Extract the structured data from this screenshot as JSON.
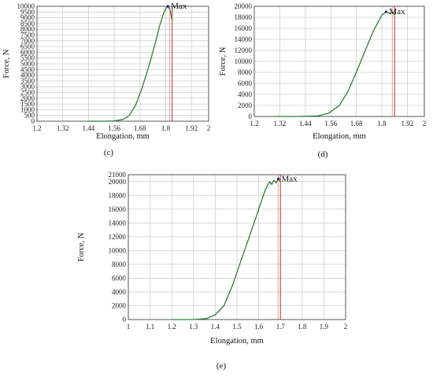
{
  "chart_data": [
    {
      "id": "c",
      "type": "line",
      "caption": "(c)",
      "xlabel": "Elongation, mm",
      "ylabel": "Force, N",
      "xlim": [
        1.2,
        2
      ],
      "ylim": [
        0,
        10000
      ],
      "xticks": [
        1.2,
        1.32,
        1.44,
        1.56,
        1.68,
        1.8,
        1.92,
        2
      ],
      "xtick_labels": [
        "1.2",
        "1.32",
        "1.44",
        "1.56",
        "1.68",
        "1.8",
        "1.92",
        "2"
      ],
      "yticks": [
        0,
        500,
        1000,
        1500,
        2000,
        2500,
        3000,
        3500,
        4000,
        4500,
        5000,
        5500,
        6000,
        6500,
        7000,
        7500,
        8000,
        8500,
        9000,
        9500,
        10000
      ],
      "ytick_labels": [
        "0",
        "500",
        "1000",
        "1500",
        "2000",
        "2500",
        "3000",
        "3500",
        "4000",
        "4500",
        "5000",
        "5500",
        "6000",
        "6500",
        "7000",
        "7500",
        "8000",
        "8500",
        "9000",
        "9500",
        "10000"
      ],
      "grid": true,
      "annotation": {
        "text": "Max",
        "x": 1.81,
        "y": 10000
      },
      "series": [
        {
          "color": "#2e7d32",
          "x": [
            1.44,
            1.5,
            1.56,
            1.6,
            1.63,
            1.66,
            1.69,
            1.72,
            1.75,
            1.77,
            1.79,
            1.8,
            1.81,
            1.82,
            1.83
          ],
          "y": [
            0,
            0,
            30,
            150,
            500,
            1400,
            2900,
            4700,
            6700,
            8200,
            9400,
            9800,
            10000,
            9700,
            8800
          ]
        }
      ],
      "marker_line": {
        "color": "#c62828",
        "x": 1.83
      }
    },
    {
      "id": "d",
      "type": "line",
      "caption": "(d)",
      "xlabel": "Elongation, mm",
      "ylabel": "Force, N",
      "xlim": [
        1.2,
        2
      ],
      "ylim": [
        0,
        20000
      ],
      "xticks": [
        1.2,
        1.32,
        1.44,
        1.56,
        1.68,
        1.8,
        1.92,
        2
      ],
      "xtick_labels": [
        "1.2",
        "1.32",
        "1.44",
        "1.56",
        "1.68",
        "1.8",
        "1.92",
        "2"
      ],
      "yticks": [
        0,
        2000,
        4000,
        6000,
        8000,
        10000,
        12000,
        14000,
        16000,
        18000,
        20000
      ],
      "ytick_labels": [
        "0",
        "2000",
        "4000",
        "6000",
        "8000",
        "10000",
        "12000",
        "14000",
        "16000",
        "18000",
        "20000"
      ],
      "grid": true,
      "annotation": {
        "text": "Max",
        "x": 1.82,
        "y": 19000
      },
      "series": [
        {
          "color": "#2e7d32",
          "x": [
            1.3,
            1.4,
            1.5,
            1.55,
            1.6,
            1.64,
            1.68,
            1.72,
            1.76,
            1.8,
            1.82,
            1.84,
            1.85,
            1.86
          ],
          "y": [
            0,
            0,
            100,
            600,
            2000,
            4500,
            8000,
            11800,
            15500,
            18400,
            19000,
            18700,
            18900,
            18500
          ]
        }
      ],
      "marker_line": {
        "color": "#c62828",
        "x": 1.86
      }
    },
    {
      "id": "e",
      "type": "line",
      "caption": "(e)",
      "xlabel": "Elongation, mm",
      "ylabel": "Force, N",
      "xlim": [
        1,
        2
      ],
      "ylim": [
        0,
        21000
      ],
      "xticks": [
        1,
        1.1,
        1.2,
        1.3,
        1.4,
        1.5,
        1.6,
        1.7,
        1.8,
        1.9,
        2
      ],
      "xtick_labels": [
        "1",
        "1.1",
        "1.2",
        "1.3",
        "1.4",
        "1.5",
        "1.6",
        "1.7",
        "1.8",
        "1.9",
        "2"
      ],
      "yticks": [
        0,
        2000,
        4000,
        6000,
        8000,
        10000,
        12000,
        14000,
        16000,
        18000,
        20000,
        21000
      ],
      "ytick_labels": [
        "0",
        "2000",
        "4000",
        "6000",
        "8000",
        "10000",
        "12000",
        "14000",
        "16000",
        "18000",
        "20000",
        "21000"
      ],
      "grid": true,
      "annotation": {
        "text": "Max",
        "x": 1.69,
        "y": 20400
      },
      "series": [
        {
          "color": "#2e7d32",
          "x": [
            1.2,
            1.3,
            1.36,
            1.4,
            1.44,
            1.48,
            1.52,
            1.56,
            1.6,
            1.63,
            1.65,
            1.66,
            1.67,
            1.68,
            1.69,
            1.7
          ],
          "y": [
            0,
            0,
            150,
            700,
            2000,
            5000,
            8700,
            12300,
            16000,
            18800,
            20000,
            19600,
            20200,
            19800,
            20400,
            20000
          ]
        }
      ],
      "marker_line": {
        "color": "#c62828",
        "x": 1.7
      }
    }
  ]
}
